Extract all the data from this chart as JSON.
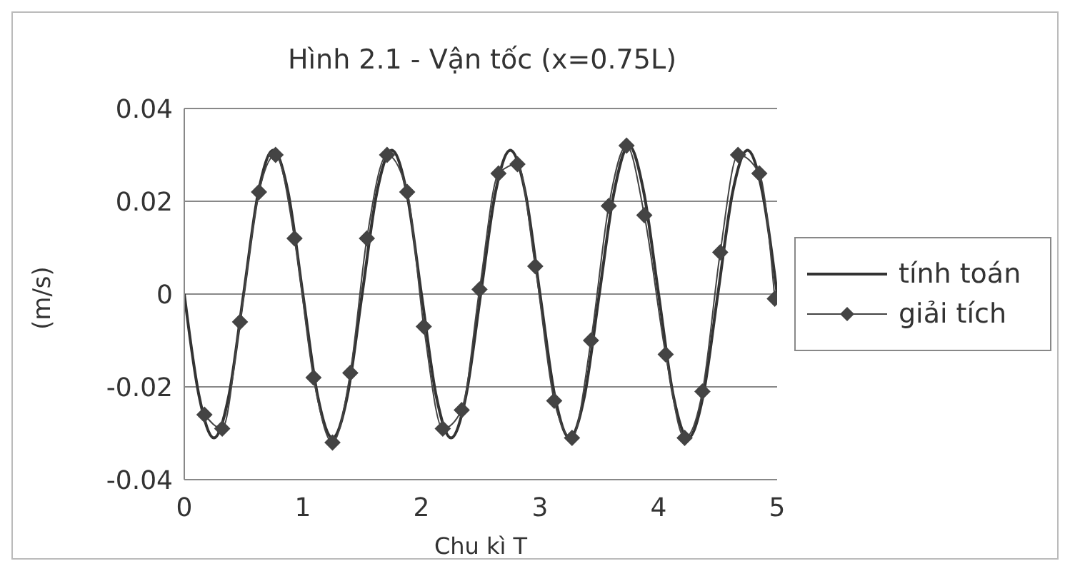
{
  "chart_data": {
    "type": "line",
    "title": "Hình 2.1 - Vận tốc (x=0.75L)",
    "xlabel": "Chu kì T",
    "ylabel": "(m/s)",
    "xlim": [
      0,
      5
    ],
    "xticks": [
      0,
      1,
      2,
      3,
      4,
      5
    ],
    "ylim": [
      -0.04,
      0.04
    ],
    "yticks": [
      -0.04,
      -0.02,
      0,
      0.02,
      0.04
    ],
    "grid": "y",
    "legend": "right",
    "series": [
      {
        "name": "tính toán",
        "color": "#333333",
        "marker": "none",
        "x": [
          0,
          0.125,
          0.25,
          0.375,
          0.5,
          0.625,
          0.75,
          0.875,
          1,
          1.125,
          1.25,
          1.375,
          1.5,
          1.625,
          1.75,
          1.875,
          2,
          2.125,
          2.25,
          2.375,
          2.5,
          2.625,
          2.75,
          2.875,
          3,
          3.125,
          3.25,
          3.375,
          3.5,
          3.625,
          3.75,
          3.875,
          4,
          4.125,
          4.25,
          4.375,
          4.5,
          4.625,
          4.75,
          4.875,
          5
        ],
        "values": [
          0,
          -0.022,
          -0.031,
          -0.022,
          0,
          0.022,
          0.031,
          0.022,
          0,
          -0.022,
          -0.031,
          -0.022,
          0,
          0.022,
          0.031,
          0.022,
          0,
          -0.022,
          -0.031,
          -0.022,
          0,
          0.022,
          0.031,
          0.022,
          0,
          -0.022,
          -0.031,
          -0.022,
          0,
          0.022,
          0.032,
          0.022,
          0,
          -0.022,
          -0.031,
          -0.022,
          0,
          0.022,
          0.031,
          0.022,
          0
        ]
      },
      {
        "name": "giải tích",
        "color": "#444444",
        "marker": "diamond",
        "x": [
          0.17,
          0.32,
          0.47,
          0.63,
          0.77,
          0.93,
          1.09,
          1.25,
          1.4,
          1.54,
          1.71,
          1.88,
          2.02,
          2.18,
          2.34,
          2.49,
          2.65,
          2.81,
          2.96,
          3.12,
          3.27,
          3.43,
          3.58,
          3.73,
          3.88,
          4.06,
          4.22,
          4.37,
          4.52,
          4.67,
          4.85,
          4.98
        ],
        "values": [
          -0.026,
          -0.029,
          -0.006,
          0.022,
          0.03,
          0.012,
          -0.018,
          -0.032,
          -0.017,
          0.012,
          0.03,
          0.022,
          -0.007,
          -0.029,
          -0.025,
          0.001,
          0.026,
          0.028,
          0.006,
          -0.023,
          -0.031,
          -0.01,
          0.019,
          0.032,
          0.017,
          -0.013,
          -0.031,
          -0.021,
          0.009,
          0.03,
          0.026,
          -0.001
        ]
      }
    ]
  }
}
